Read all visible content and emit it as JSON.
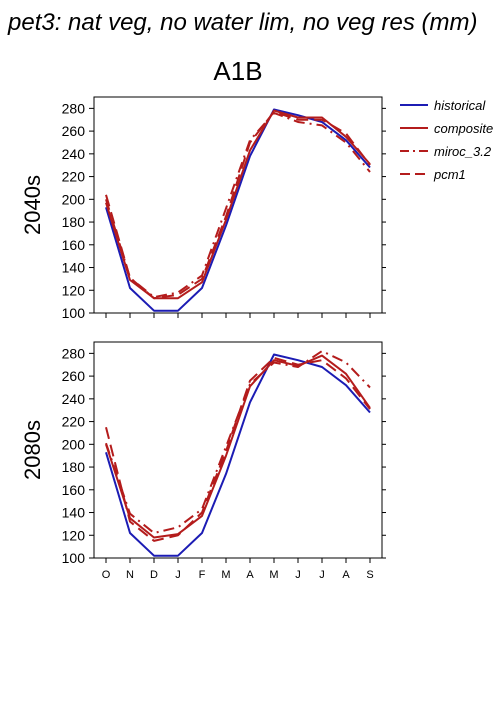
{
  "figure": {
    "title": "pet3: nat veg, no water lim, no veg res (mm)",
    "scenario": "A1B"
  },
  "legend": [
    {
      "name": "historical",
      "color": "#1c1cb4",
      "dash": "solid"
    },
    {
      "name": "composite",
      "color": "#b41c1c",
      "dash": "solid"
    },
    {
      "name": "miroc_3.2",
      "color": "#b41c1c",
      "dash": "dashdot"
    },
    {
      "name": "pcm1",
      "color": "#b41c1c",
      "dash": "dash"
    }
  ],
  "chart_data": [
    {
      "type": "line",
      "panel_label": "2040s",
      "categories": [
        "O",
        "N",
        "D",
        "J",
        "F",
        "M",
        "A",
        "M",
        "J",
        "J",
        "A",
        "S"
      ],
      "ylim": [
        100,
        290
      ],
      "yticks": [
        100,
        120,
        140,
        160,
        180,
        200,
        220,
        240,
        260,
        280
      ],
      "show_xtick_labels": false,
      "grid": false,
      "series": [
        {
          "name": "historical",
          "values": [
            193,
            122,
            102,
            102,
            122,
            177,
            238,
            279,
            274,
            268,
            252,
            228
          ]
        },
        {
          "name": "composite",
          "values": [
            197,
            129,
            113,
            113,
            127,
            182,
            243,
            278,
            272,
            272,
            255,
            231
          ]
        },
        {
          "name": "miroc_3.2",
          "values": [
            200,
            131,
            114,
            118,
            133,
            192,
            252,
            276,
            268,
            265,
            250,
            224
          ]
        },
        {
          "name": "pcm1",
          "values": [
            204,
            131,
            113,
            116,
            130,
            185,
            250,
            277,
            270,
            270,
            258,
            230
          ]
        }
      ]
    },
    {
      "type": "line",
      "panel_label": "2080s",
      "categories": [
        "O",
        "N",
        "D",
        "J",
        "F",
        "M",
        "A",
        "M",
        "J",
        "J",
        "A",
        "S"
      ],
      "ylim": [
        100,
        290
      ],
      "yticks": [
        100,
        120,
        140,
        160,
        180,
        200,
        220,
        240,
        260,
        280
      ],
      "show_xtick_labels": true,
      "grid": false,
      "series": [
        {
          "name": "historical",
          "values": [
            193,
            122,
            102,
            102,
            122,
            174,
            237,
            279,
            274,
            268,
            252,
            228
          ]
        },
        {
          "name": "composite",
          "values": [
            200,
            135,
            118,
            121,
            137,
            190,
            251,
            274,
            269,
            278,
            262,
            232
          ]
        },
        {
          "name": "miroc_3.2",
          "values": [
            201,
            139,
            122,
            127,
            143,
            198,
            253,
            272,
            268,
            282,
            272,
            250
          ]
        },
        {
          "name": "pcm1",
          "values": [
            215,
            132,
            115,
            120,
            140,
            194,
            256,
            276,
            270,
            274,
            258,
            231
          ]
        }
      ]
    }
  ]
}
